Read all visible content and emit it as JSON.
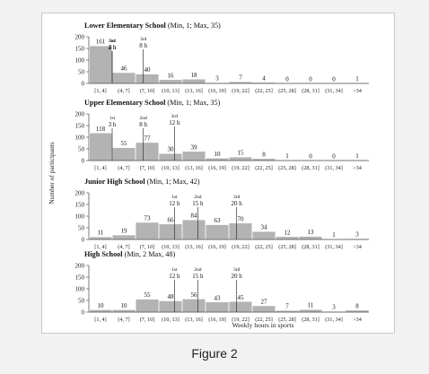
{
  "figure": {
    "caption": "Figure 2"
  },
  "shared": {
    "y_axis_label": "Number of participants",
    "x_axis_label": "Weekly hours in sports",
    "bar_color": "#b3b3b3",
    "bar_edge_color": "#ffffff",
    "axis_color": "#444444"
  },
  "chart_data": [
    {
      "type": "bar",
      "title": "Lower Elementary School",
      "subtitle": "(Min, 1; Max, 35)",
      "categories": [
        "[1, 4]",
        "(4, 7]",
        "(7, 10]",
        "(10, 13]",
        "(13, 16]",
        "(16, 19]",
        "(19, 22]",
        "(22, 25]",
        "(25, 28]",
        "(28, 31]",
        "(31, 34]",
        ">34"
      ],
      "values": [
        161,
        46,
        40,
        16,
        18,
        3,
        7,
        4,
        0,
        0,
        0,
        1
      ],
      "ylim": [
        0,
        200
      ],
      "yticks": [
        0,
        50,
        100,
        150,
        200
      ],
      "quartiles": [
        {
          "label": "1st",
          "hours_label": "2 h",
          "hours": 2
        },
        {
          "label": "2nd",
          "hours_label": "4 h",
          "hours": 4
        },
        {
          "label": "3rd",
          "hours_label": "8 h",
          "hours": 8
        }
      ]
    },
    {
      "type": "bar",
      "title": "Upper Elementary School",
      "subtitle": "(Min, 1; Max, 35)",
      "categories": [
        "[1, 4]",
        "(4, 7]",
        "(7, 10]",
        "(10, 13]",
        "(13, 16]",
        "(16, 19]",
        "(19, 22]",
        "(22, 25]",
        "(25, 28]",
        "(28, 31]",
        "(31, 34]",
        ">34"
      ],
      "values": [
        118,
        55,
        77,
        30,
        39,
        10,
        15,
        8,
        1,
        0,
        0,
        1
      ],
      "ylim": [
        0,
        200
      ],
      "yticks": [
        0,
        50,
        100,
        150,
        200
      ],
      "quartiles": [
        {
          "label": "1st",
          "hours_label": "3 h",
          "hours": 3
        },
        {
          "label": "2nd",
          "hours_label": "8 h",
          "hours": 8
        },
        {
          "label": "3rd",
          "hours_label": "12 h",
          "hours": 12
        }
      ]
    },
    {
      "type": "bar",
      "title": "Junior High School",
      "subtitle": "(Min, 1; Max, 42)",
      "categories": [
        "[1, 4]",
        "(4, 7]",
        "(7, 10]",
        "(10, 13]",
        "(13, 16]",
        "(16, 19]",
        "(19, 22]",
        "(22, 25]",
        "(25, 28]",
        "(28, 31]",
        "(31, 34]",
        ">34"
      ],
      "values": [
        11,
        19,
        73,
        66,
        84,
        63,
        70,
        34,
        12,
        13,
        1,
        3
      ],
      "ylim": [
        0,
        200
      ],
      "yticks": [
        0,
        50,
        100,
        150,
        200
      ],
      "quartiles": [
        {
          "label": "1st",
          "hours_label": "12 h",
          "hours": 12
        },
        {
          "label": "2nd",
          "hours_label": "15 h",
          "hours": 15
        },
        {
          "label": "3rd",
          "hours_label": "20 h",
          "hours": 20
        }
      ]
    },
    {
      "type": "bar",
      "title": "High School",
      "subtitle": "(Min, 2 Max, 48)",
      "categories": [
        "[1, 4]",
        "(4, 7]",
        "(7, 10]",
        "(10, 13]",
        "(13, 16]",
        "(16, 19]",
        "(19, 22]",
        "(22, 25]",
        "(25, 28]",
        "(28, 31]",
        "(31, 34]",
        ">34"
      ],
      "values": [
        10,
        10,
        55,
        48,
        56,
        43,
        45,
        27,
        7,
        11,
        3,
        8
      ],
      "ylim": [
        0,
        200
      ],
      "yticks": [
        0,
        50,
        100,
        150,
        200
      ],
      "quartiles": [
        {
          "label": "1st",
          "hours_label": "12 h",
          "hours": 12
        },
        {
          "label": "2nd",
          "hours_label": "15 h",
          "hours": 15
        },
        {
          "label": "3rd",
          "hours_label": "20 h",
          "hours": 20
        }
      ]
    }
  ]
}
